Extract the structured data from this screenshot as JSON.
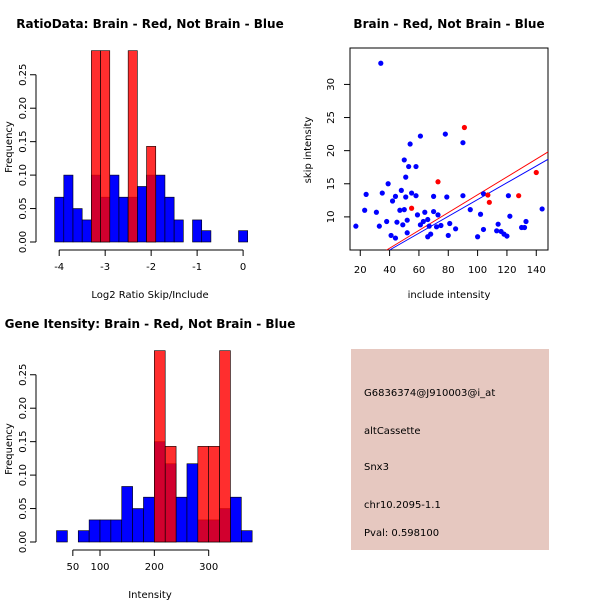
{
  "chart_data": [
    {
      "type": "histogram",
      "title": "RatioData: Brain - Red, Not Brain - Blue",
      "xlabel": "Log2 Ratio Skip/Include",
      "ylabel": "Frequency",
      "xlim": [
        -4.2,
        0.15
      ],
      "ylim": [
        0,
        0.29
      ],
      "xticks": [
        -4,
        -3,
        -2,
        -1,
        0
      ],
      "yticks": [
        0.0,
        0.05,
        0.1,
        0.15,
        0.2,
        0.25
      ],
      "bin_width": 0.2,
      "series": [
        {
          "name": "Not Brain",
          "color": "#0000ff",
          "bins": [
            {
              "start": -4.1,
              "value": 0.067
            },
            {
              "start": -3.9,
              "value": 0.1
            },
            {
              "start": -3.7,
              "value": 0.05
            },
            {
              "start": -3.5,
              "value": 0.033
            },
            {
              "start": -3.3,
              "value": 0.1
            },
            {
              "start": -3.1,
              "value": 0.067
            },
            {
              "start": -2.9,
              "value": 0.1
            },
            {
              "start": -2.7,
              "value": 0.067
            },
            {
              "start": -2.5,
              "value": 0.067
            },
            {
              "start": -2.3,
              "value": 0.083
            },
            {
              "start": -2.1,
              "value": 0.1
            },
            {
              "start": -1.9,
              "value": 0.1
            },
            {
              "start": -1.7,
              "value": 0.067
            },
            {
              "start": -1.5,
              "value": 0.033
            },
            {
              "start": -1.1,
              "value": 0.033
            },
            {
              "start": -0.9,
              "value": 0.017
            },
            {
              "start": -0.1,
              "value": 0.017
            }
          ]
        },
        {
          "name": "Brain",
          "color": "#ff0000",
          "bins": [
            {
              "start": -3.3,
              "value": 0.286
            },
            {
              "start": -3.1,
              "value": 0.286
            },
            {
              "start": -2.5,
              "value": 0.286
            },
            {
              "start": -2.1,
              "value": 0.143
            }
          ]
        }
      ]
    },
    {
      "type": "scatter",
      "title": "Brain - Red, Not Brain - Blue",
      "xlabel": "include intensity",
      "ylabel": "skip intensity",
      "xlim": [
        13,
        148
      ],
      "ylim": [
        5,
        35.5
      ],
      "xticks": [
        20,
        40,
        60,
        80,
        100,
        120,
        140
      ],
      "yticks": [
        10,
        15,
        20,
        25,
        30
      ],
      "series": [
        {
          "name": "Not Brain",
          "color": "#0000ff",
          "points": [
            [
              17,
              8.6
            ],
            [
              23,
              11
            ],
            [
              24,
              13.4
            ],
            [
              31,
              10.7
            ],
            [
              33,
              8.6
            ],
            [
              34,
              33.2
            ],
            [
              35,
              13.6
            ],
            [
              38,
              9.3
            ],
            [
              39,
              15
            ],
            [
              41,
              7.2
            ],
            [
              42,
              12.4
            ],
            [
              44,
              6.8
            ],
            [
              44,
              13.1
            ],
            [
              45,
              9.2
            ],
            [
              47,
              11
            ],
            [
              48,
              14
            ],
            [
              49,
              8.8
            ],
            [
              50,
              11.1
            ],
            [
              50,
              18.6
            ],
            [
              51,
              13
            ],
            [
              51,
              16
            ],
            [
              52,
              7.6
            ],
            [
              52,
              9.5
            ],
            [
              53,
              17.6
            ],
            [
              54,
              21
            ],
            [
              55,
              13.6
            ],
            [
              58,
              13.2
            ],
            [
              58,
              17.6
            ],
            [
              59,
              10.3
            ],
            [
              61,
              8.8
            ],
            [
              61,
              22.2
            ],
            [
              63,
              9.3
            ],
            [
              64,
              10.7
            ],
            [
              66,
              7
            ],
            [
              66,
              9.6
            ],
            [
              67,
              8.6
            ],
            [
              68,
              7.4
            ],
            [
              70,
              10.8
            ],
            [
              70,
              13.1
            ],
            [
              72,
              8.5
            ],
            [
              73,
              10.3
            ],
            [
              75,
              8.7
            ],
            [
              78,
              22.5
            ],
            [
              79,
              13
            ],
            [
              80,
              7.2
            ],
            [
              81,
              9
            ],
            [
              85,
              8.2
            ],
            [
              90,
              13.2
            ],
            [
              90,
              21.2
            ],
            [
              95,
              11.1
            ],
            [
              100,
              7
            ],
            [
              102,
              10.4
            ],
            [
              104,
              13.5
            ],
            [
              104,
              8.1
            ],
            [
              113,
              7.9
            ],
            [
              114,
              8.9
            ],
            [
              116,
              7.8
            ],
            [
              118,
              7.4
            ],
            [
              120,
              7.1
            ],
            [
              121,
              13.2
            ],
            [
              122,
              10.1
            ],
            [
              130,
              8.4
            ],
            [
              132,
              8.4
            ],
            [
              133,
              9.3
            ],
            [
              144,
              11.2
            ]
          ]
        },
        {
          "name": "Brain",
          "color": "#ff0000",
          "points": [
            [
              55,
              11.3
            ],
            [
              73,
              15.3
            ],
            [
              91,
              23.5
            ],
            [
              107,
              13.3
            ],
            [
              108,
              12.2
            ],
            [
              128,
              13.2
            ],
            [
              140,
              16.7
            ]
          ]
        }
      ],
      "fit_lines": [
        {
          "name": "Not Brain fit",
          "color": "#0000ff",
          "from": [
            40,
            5
          ],
          "to": [
            148,
            18.7
          ]
        },
        {
          "name": "Brain fit",
          "color": "#ff0000",
          "from": [
            38,
            5
          ],
          "to": [
            148,
            19.8
          ]
        }
      ]
    },
    {
      "type": "histogram",
      "title": "Gene Itensity: Brain - Red, Not Brain - Blue",
      "xlabel": "Intensity",
      "ylabel": "Frequency",
      "xlim": [
        8,
        376
      ],
      "ylim": [
        0,
        0.29
      ],
      "xticks": [
        50,
        100,
        200,
        300
      ],
      "yticks": [
        0.0,
        0.05,
        0.1,
        0.15,
        0.2,
        0.25
      ],
      "bin_width": 20,
      "series": [
        {
          "name": "Not Brain",
          "color": "#0000ff",
          "bins": [
            {
              "start": 20,
              "value": 0.017
            },
            {
              "start": 60,
              "value": 0.017
            },
            {
              "start": 80,
              "value": 0.033
            },
            {
              "start": 100,
              "value": 0.033
            },
            {
              "start": 120,
              "value": 0.033
            },
            {
              "start": 140,
              "value": 0.083
            },
            {
              "start": 160,
              "value": 0.05
            },
            {
              "start": 180,
              "value": 0.067
            },
            {
              "start": 200,
              "value": 0.15
            },
            {
              "start": 220,
              "value": 0.117
            },
            {
              "start": 240,
              "value": 0.067
            },
            {
              "start": 260,
              "value": 0.117
            },
            {
              "start": 280,
              "value": 0.033
            },
            {
              "start": 300,
              "value": 0.033
            },
            {
              "start": 320,
              "value": 0.05
            },
            {
              "start": 340,
              "value": 0.067
            },
            {
              "start": 360,
              "value": 0.017
            }
          ]
        },
        {
          "name": "Brain",
          "color": "#ff0000",
          "bins": [
            {
              "start": 200,
              "value": 0.286
            },
            {
              "start": 220,
              "value": 0.143
            },
            {
              "start": 280,
              "value": 0.143
            },
            {
              "start": 300,
              "value": 0.143
            },
            {
              "start": 320,
              "value": 0.286
            }
          ]
        }
      ]
    }
  ],
  "info_panel": {
    "probe": "G6836374@J910003@i_at",
    "event_type": "altCassette",
    "gene": "Snx3",
    "location": "chr10.2095-1.1",
    "pval": "Pval: 0.598100",
    "colors": {
      "background": "#e6c8c0",
      "pval": "#990000"
    }
  }
}
